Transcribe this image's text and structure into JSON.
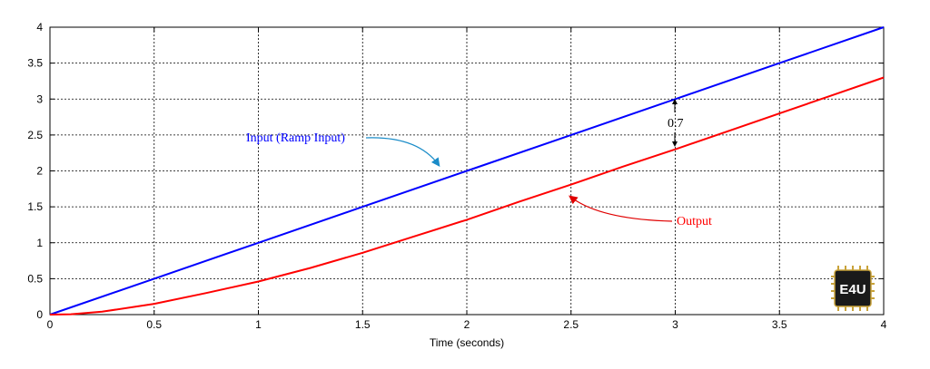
{
  "chart_data": {
    "type": "line",
    "xlabel": "Time (seconds)",
    "ylabel": "",
    "xlim": [
      0,
      4
    ],
    "ylim": [
      0,
      4
    ],
    "xticks": [
      "0",
      "0.5",
      "1",
      "1.5",
      "2",
      "2.5",
      "3",
      "3.5",
      "4"
    ],
    "yticks": [
      "0",
      "0.5",
      "1",
      "1.5",
      "2",
      "2.5",
      "3",
      "3.5",
      "4"
    ],
    "grid": true,
    "series": [
      {
        "name": "Input (Ramp Input)",
        "color": "#0000ff",
        "x": [
          0,
          0.5,
          1,
          1.5,
          2,
          2.5,
          3,
          3.5,
          4
        ],
        "y": [
          0,
          0.5,
          1,
          1.5,
          2,
          2.5,
          3,
          3.5,
          4
        ]
      },
      {
        "name": "Output",
        "color": "#ff0000",
        "x": [
          0,
          0.1,
          0.25,
          0.5,
          0.75,
          1,
          1.25,
          1.5,
          1.75,
          2,
          2.25,
          2.5,
          2.75,
          3,
          3.25,
          3.5,
          3.75,
          4
        ],
        "y": [
          0,
          0.005,
          0.04,
          0.15,
          0.3,
          0.46,
          0.65,
          0.86,
          1.09,
          1.32,
          1.57,
          1.81,
          2.06,
          2.3,
          2.55,
          2.8,
          3.05,
          3.3
        ]
      }
    ],
    "annotations": [
      {
        "text": "Input (Ramp Input)",
        "color": "#0000ff"
      },
      {
        "text": "Output",
        "color": "#ff0000"
      },
      {
        "text": "0.7",
        "color": "#000000"
      }
    ]
  },
  "logo": {
    "text": "E4U"
  }
}
